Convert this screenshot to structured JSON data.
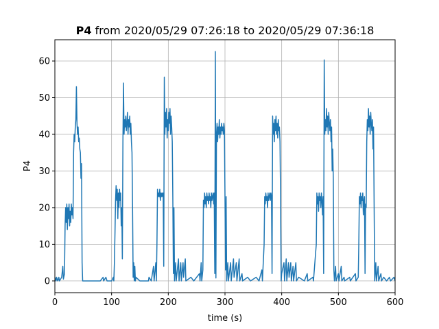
{
  "chart_data": {
    "type": "line",
    "title_bold": "P4",
    "title": "from 2020/05/29 07:26:18 to 2020/05/29 07:36:18",
    "xlabel": "time (s)",
    "ylabel": "P4",
    "color": "#1f77b4",
    "grid": true,
    "xlim": [
      0,
      600
    ],
    "ylim": [
      -3.2,
      65.8
    ],
    "xticks": [
      0,
      100,
      200,
      300,
      400,
      500,
      600
    ],
    "yticks": [
      0,
      10,
      20,
      30,
      40,
      50,
      60
    ],
    "x": [
      0,
      2,
      3,
      5,
      7,
      8,
      10,
      12,
      14,
      15,
      17,
      18,
      19,
      20,
      21,
      22,
      23,
      24,
      25,
      26,
      27,
      28,
      29,
      30,
      31,
      32,
      33,
      34,
      35,
      36,
      37,
      38,
      39,
      40,
      41,
      42,
      43,
      44,
      45,
      46,
      47,
      48,
      49,
      55,
      80,
      85,
      86,
      90,
      92,
      100,
      103,
      104,
      105,
      106,
      107,
      108,
      109,
      110,
      111,
      112,
      113,
      114,
      115,
      116,
      117,
      118,
      119,
      120,
      121,
      122,
      123,
      124,
      125,
      126,
      127,
      128,
      129,
      130,
      131,
      132,
      133,
      134,
      135,
      136,
      137,
      138,
      139,
      140,
      141,
      142,
      143,
      150,
      165,
      166,
      170,
      174,
      175,
      178,
      179,
      180,
      181,
      182,
      183,
      184,
      185,
      186,
      187,
      188,
      189,
      190,
      191,
      192,
      193,
      194,
      195,
      196,
      197,
      198,
      199,
      200,
      201,
      202,
      203,
      204,
      205,
      206,
      207,
      208,
      209,
      210,
      211,
      213,
      214,
      218,
      219,
      222,
      223,
      226,
      227,
      230,
      231,
      240,
      245,
      255,
      256,
      258,
      259,
      261,
      262,
      263,
      264,
      265,
      266,
      267,
      268,
      269,
      270,
      271,
      272,
      273,
      274,
      275,
      276,
      277,
      278,
      279,
      280,
      281,
      282,
      283,
      284,
      285,
      286,
      287,
      288,
      289,
      290,
      291,
      292,
      293,
      294,
      295,
      296,
      297,
      298,
      299,
      300,
      301,
      302,
      303,
      305,
      306,
      310,
      311,
      315,
      316,
      320,
      321,
      325,
      326,
      330,
      331,
      340,
      345,
      355,
      360,
      365,
      366,
      369,
      370,
      371,
      372,
      373,
      374,
      375,
      376,
      377,
      378,
      379,
      380,
      381,
      382,
      383,
      384,
      385,
      386,
      387,
      388,
      389,
      390,
      391,
      392,
      393,
      394,
      395,
      396,
      397,
      398,
      399,
      400,
      404,
      405,
      408,
      409,
      412,
      413,
      416,
      417,
      420,
      421,
      425,
      426,
      430,
      440,
      445,
      446,
      455,
      456,
      461,
      462,
      463,
      464,
      465,
      466,
      467,
      468,
      469,
      470,
      471,
      472,
      473,
      474,
      475,
      476,
      477,
      478,
      479,
      480,
      481,
      482,
      483,
      484,
      485,
      486,
      487,
      488,
      489,
      490,
      491,
      492,
      493,
      495,
      496,
      500,
      501,
      505,
      506,
      510,
      511,
      520,
      521,
      530,
      531,
      535,
      536,
      537,
      538,
      539,
      540,
      541,
      542,
      543,
      544,
      545,
      546,
      547,
      548,
      549,
      550,
      551,
      552,
      553,
      554,
      555,
      556,
      557,
      558,
      559,
      560,
      561,
      562,
      563,
      564,
      566,
      567,
      570,
      571,
      575,
      576,
      580,
      585,
      590,
      592,
      598,
      600
    ],
    "values": [
      1,
      0,
      1,
      0,
      1,
      0,
      0.5,
      1,
      4,
      0.5,
      2,
      15,
      20,
      16,
      21,
      14,
      20,
      17,
      21,
      15,
      19,
      16,
      21,
      18,
      20,
      17,
      35,
      40,
      38,
      42,
      44,
      53,
      43,
      40,
      42,
      38,
      39,
      36,
      35,
      28,
      32,
      5,
      0,
      0,
      0,
      1,
      0,
      1,
      0,
      0,
      1,
      0,
      5,
      13,
      22,
      26,
      22,
      25,
      17,
      24,
      20,
      25,
      22,
      24,
      15,
      20,
      6,
      38,
      54,
      40,
      44,
      42,
      45,
      41,
      43,
      46,
      40,
      44,
      42,
      45,
      40,
      43,
      38,
      35,
      20,
      1,
      5,
      0,
      4,
      0,
      1,
      0,
      0,
      1,
      0,
      4,
      0,
      5,
      0,
      10,
      25,
      23,
      24,
      23,
      25,
      22,
      24,
      23,
      24,
      23,
      24,
      4,
      55.6,
      40,
      46,
      42,
      47,
      39,
      44,
      41,
      46,
      43,
      47,
      40,
      45,
      42,
      38,
      23,
      2,
      20,
      0,
      5,
      0,
      6,
      0,
      5,
      0,
      5,
      1,
      6,
      0,
      1,
      0,
      2,
      0,
      5,
      0,
      3,
      22,
      20,
      24,
      21,
      23,
      20,
      24,
      22,
      23,
      21,
      24,
      22,
      23,
      20,
      24,
      22,
      23,
      24,
      21,
      24,
      2,
      62.6,
      0.8,
      40,
      43,
      38,
      42,
      40,
      44,
      39,
      42,
      40,
      43,
      41,
      42,
      40,
      43,
      41,
      23,
      3,
      23,
      0,
      5,
      0,
      5,
      0,
      6,
      1,
      5,
      0,
      6,
      0,
      2,
      0,
      1,
      0,
      1,
      0,
      3,
      0,
      10,
      23,
      21,
      24,
      22,
      23,
      20,
      24,
      22,
      23,
      24,
      22,
      24,
      23,
      2,
      45,
      40,
      43,
      38,
      44,
      41,
      45,
      40,
      43,
      39,
      44,
      41,
      42,
      38,
      23,
      0,
      2,
      5,
      0,
      6,
      0,
      5,
      1,
      5,
      0,
      4,
      0,
      5,
      0,
      1,
      0,
      2,
      0,
      1,
      0,
      10,
      24,
      21,
      23,
      19,
      24,
      22,
      23,
      20,
      24,
      22,
      18,
      23,
      2,
      60.3,
      40,
      44,
      41,
      47,
      42,
      45,
      40,
      46,
      43,
      41,
      44,
      38,
      42,
      30,
      36,
      28,
      3,
      0,
      4,
      0,
      2,
      0,
      4,
      0,
      1,
      0,
      1,
      0,
      2,
      0,
      1,
      10,
      23,
      21,
      24,
      20,
      23,
      22,
      24,
      18,
      22,
      23,
      2,
      21,
      20,
      38,
      44,
      41,
      47,
      42,
      45,
      40,
      46,
      43,
      41,
      44,
      36,
      42,
      21,
      0,
      5,
      0,
      4,
      0,
      2,
      0,
      1,
      0,
      1,
      0,
      1,
      0
    ]
  }
}
